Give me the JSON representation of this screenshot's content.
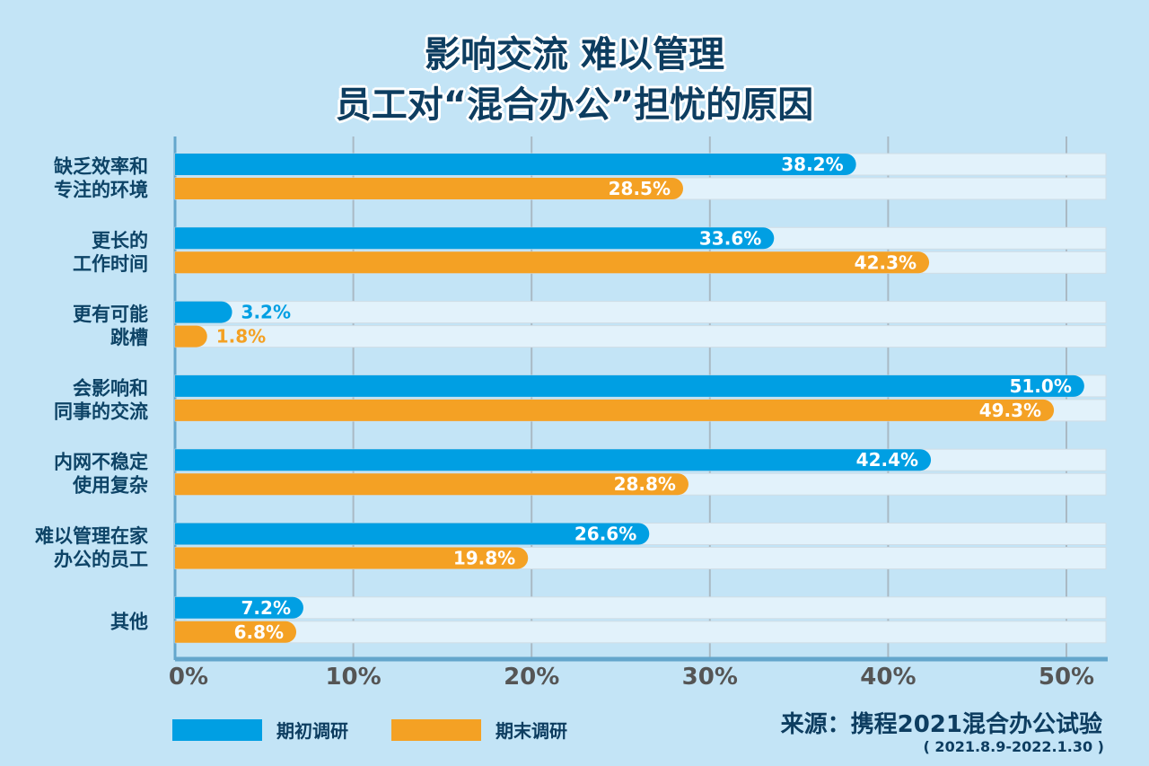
{
  "title_line1": "影响交流 难以管理",
  "title_line2": "员工对“混合办公”担忧的原因",
  "chart_data": {
    "type": "bar",
    "orientation": "horizontal",
    "categories": [
      [
        "缺乏效率和",
        "专注的环境"
      ],
      [
        "更长的",
        "工作时间"
      ],
      [
        "更有可能",
        "跳槽"
      ],
      [
        "会影响和",
        "同事的交流"
      ],
      [
        "内网不稳定",
        "使用复杂"
      ],
      [
        "难以管理在家",
        "办公的员工"
      ],
      [
        "其他"
      ]
    ],
    "series": [
      {
        "name": "期初调研",
        "color": "#009fe3",
        "values": [
          38.2,
          33.6,
          3.2,
          51.0,
          42.4,
          26.6,
          7.2
        ]
      },
      {
        "name": "期末调研",
        "color": "#f4a124",
        "values": [
          28.5,
          42.3,
          1.8,
          49.3,
          28.8,
          19.8,
          6.8
        ]
      }
    ],
    "xlim": [
      0,
      52
    ],
    "xticks": [
      "0%",
      "10%",
      "20%",
      "30%",
      "40%",
      "50%"
    ],
    "xtick_values": [
      0,
      10,
      20,
      30,
      40,
      50
    ],
    "grid": true,
    "legend_placement": "bottom-left"
  },
  "source": "来源：携程2021混合办公试验",
  "source_dates": "( 2021.8.9-2022.1.30 )"
}
